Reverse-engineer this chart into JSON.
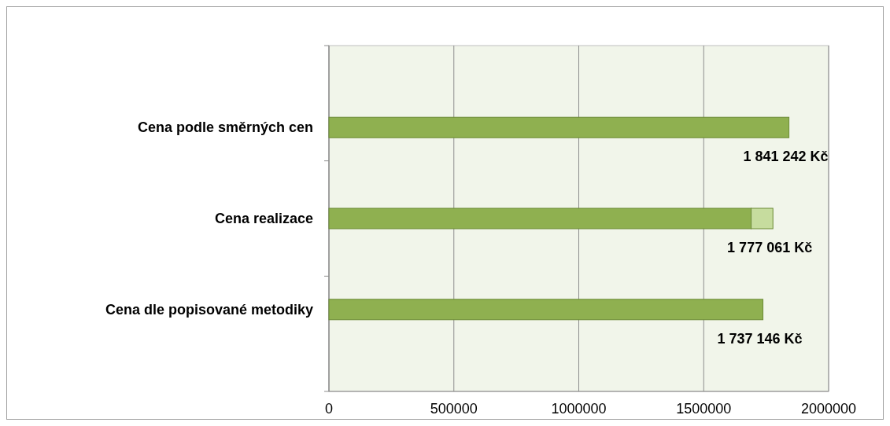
{
  "chart_data": {
    "type": "bar",
    "orientation": "horizontal",
    "stacked": true,
    "categories": [
      "Cena podle směrných cen",
      "Cena realizace",
      "Cena dle popisované metodiky"
    ],
    "series": [
      {
        "color": "#8fb050",
        "values": [
          1841242,
          1690000,
          1737146
        ]
      },
      {
        "color": "#c6dc9e",
        "values": [
          null,
          87061,
          null
        ]
      }
    ],
    "totals": [
      "1 841 242 Kč",
      "1 777 061 Kč",
      "1 737 146 Kč"
    ],
    "xlim": [
      0,
      2000000
    ],
    "xticks": [
      0,
      500000,
      1000000,
      1500000,
      2000000
    ],
    "grid": "x"
  }
}
